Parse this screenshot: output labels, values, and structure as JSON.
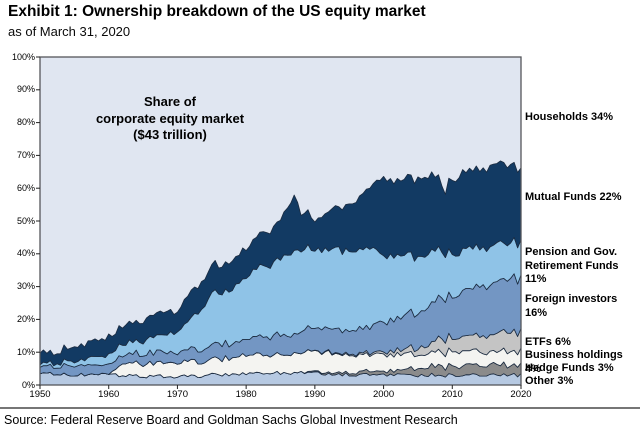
{
  "header": {
    "title": "Exhibit 1: Ownership breakdown of the US equity market",
    "subtitle": "as of March 31, 2020"
  },
  "annotation": {
    "text": "Share of\ncorporate equity market\n($43 trillion)"
  },
  "source": "Source: Federal Reserve Board and Goldman Sachs Global Investment Research",
  "chart_data": {
    "type": "area",
    "stacked": true,
    "units": "% of US corporate equity market",
    "title": "Share of corporate equity market ($43 trillion)",
    "xlim": [
      1950,
      2020
    ],
    "ylim": [
      0,
      100
    ],
    "grid": false,
    "legend_position": "right-outside",
    "outline_color": "#1b2b40",
    "axis": {
      "y_ticks": [
        "0%",
        "10%",
        "20%",
        "30%",
        "40%",
        "50%",
        "60%",
        "70%",
        "80%",
        "90%",
        "100%"
      ],
      "x_ticks": [
        "1950",
        "1960",
        "1970",
        "1980",
        "1990",
        "2000",
        "2010",
        "2020"
      ]
    },
    "households": {
      "name": "Households",
      "label": "Households 34%",
      "pct_2020": 34,
      "color": "#e0e6f1",
      "note": "remainder of 100% (background area at top of stack)"
    },
    "x": [
      1950,
      1952,
      1955,
      1958,
      1960,
      1962,
      1964,
      1966,
      1968,
      1970,
      1972,
      1974,
      1975,
      1976,
      1978,
      1980,
      1982,
      1984,
      1986,
      1987,
      1988,
      1990,
      1992,
      1994,
      1996,
      1998,
      2000,
      2002,
      2004,
      2006,
      2008,
      2009,
      2010,
      2012,
      2014,
      2016,
      2018,
      2019,
      2020
    ],
    "series": [
      {
        "name": "Other",
        "label": "Other 3%",
        "pct_2020": 3,
        "color": "#b6c9e2",
        "values": [
          3.5,
          3.2,
          3.3,
          3.3,
          3.3,
          2.9,
          2.8,
          2.7,
          2.6,
          2.5,
          2.6,
          2.8,
          3.0,
          3.1,
          3.3,
          3.5,
          3.6,
          3.7,
          3.8,
          3.9,
          3.8,
          3.5,
          3.4,
          3.3,
          3.2,
          3.1,
          3.0,
          3.0,
          3.0,
          3.0,
          3.0,
          3.0,
          3.0,
          3.0,
          3.0,
          3.0,
          3.0,
          3.0,
          3.0
        ]
      },
      {
        "name": "Hedge Funds",
        "label": "Hedge Funds 3%",
        "pct_2020": 3,
        "color": "#8b8b8b",
        "values": [
          0,
          0,
          0,
          0,
          0,
          0,
          0,
          0,
          0,
          0,
          0,
          0,
          0,
          0,
          0,
          0,
          0,
          0,
          0,
          0,
          0,
          0.4,
          0.5,
          0.6,
          0.8,
          1.0,
          1.2,
          1.5,
          2.0,
          2.5,
          2.8,
          2.6,
          2.8,
          2.9,
          3.0,
          3.0,
          3.0,
          3.0,
          3.0
        ]
      },
      {
        "name": "Business holdings",
        "label": "Business holdings 4%",
        "pct_2020": 4,
        "color": "#f4f4f1",
        "values": [
          0,
          0,
          0,
          0,
          0,
          3.5,
          3.7,
          3.9,
          4.1,
          4.2,
          4.3,
          4.5,
          4.8,
          4.9,
          5.2,
          5.5,
          5.6,
          5.7,
          5.8,
          5.9,
          5.8,
          6.5,
          6.0,
          5.8,
          5.5,
          5.2,
          5.0,
          4.8,
          4.6,
          4.4,
          4.3,
          4.2,
          4.3,
          4.2,
          4.2,
          4.1,
          4.0,
          4.0,
          4.0
        ]
      },
      {
        "name": "ETFs",
        "label": "ETFs 6%",
        "pct_2020": 6,
        "color": "#c4c4c4",
        "values": [
          0,
          0,
          0,
          0,
          0,
          0,
          0,
          0,
          0,
          0,
          0,
          0,
          0,
          0,
          0,
          0,
          0,
          0,
          0,
          0,
          0,
          0.1,
          0.2,
          0.3,
          0.4,
          0.6,
          0.8,
          1.2,
          1.8,
          2.5,
          3.5,
          3.8,
          4.0,
          4.5,
          5.0,
          5.3,
          5.8,
          6.0,
          6.0
        ]
      },
      {
        "name": "Foreign investors",
        "label": "Foreign investors 16%",
        "pct_2020": 16,
        "color": "#7396c3",
        "values": [
          2.5,
          2.3,
          2.6,
          2.7,
          2.8,
          2.7,
          2.8,
          2.9,
          3.1,
          3.3,
          3.6,
          4.0,
          4.2,
          4.3,
          4.6,
          5.0,
          5.3,
          5.6,
          6.0,
          6.2,
          6.5,
          7.0,
          7.0,
          7.2,
          7.5,
          8.0,
          9.0,
          10.0,
          10.5,
          11.5,
          12.0,
          12.5,
          13.0,
          14.0,
          15.0,
          15.5,
          16.0,
          16.5,
          16.0
        ]
      },
      {
        "name": "Pension and Gov. Retirement Funds",
        "label": "Pension and Gov.\nRetirement Funds 11%",
        "pct_2020": 11,
        "color": "#8fc3e7",
        "values": [
          1.0,
          1.0,
          1.6,
          2.2,
          2.7,
          3.1,
          3.7,
          4.5,
          5.5,
          6.5,
          9.0,
          13.5,
          16.0,
          15.0,
          16.5,
          19.0,
          21.0,
          22.5,
          24.3,
          25.9,
          25.0,
          24.0,
          24.0,
          24.5,
          24.5,
          24.0,
          20.0,
          19.0,
          18.0,
          16.5,
          15.0,
          13.5,
          13.0,
          12.5,
          12.0,
          11.5,
          11.2,
          11.0,
          11.0
        ]
      },
      {
        "name": "Mutual Funds",
        "label": "Mutual Funds 22%",
        "pct_2020": 22,
        "color": "#123a63",
        "values": [
          3.5,
          3.0,
          4.5,
          5.0,
          5.5,
          5.6,
          5.9,
          6.2,
          7.0,
          6.5,
          8.0,
          8.5,
          9.0,
          8.2,
          8.9,
          9.0,
          9.5,
          10.5,
          14.0,
          17.0,
          11.0,
          9.0,
          11.5,
          13.0,
          15.5,
          18.5,
          24.0,
          23.0,
          23.5,
          24.0,
          22.0,
          19.0,
          23.0,
          23.5,
          24.0,
          24.5,
          24.0,
          23.0,
          22.0
        ]
      }
    ]
  }
}
